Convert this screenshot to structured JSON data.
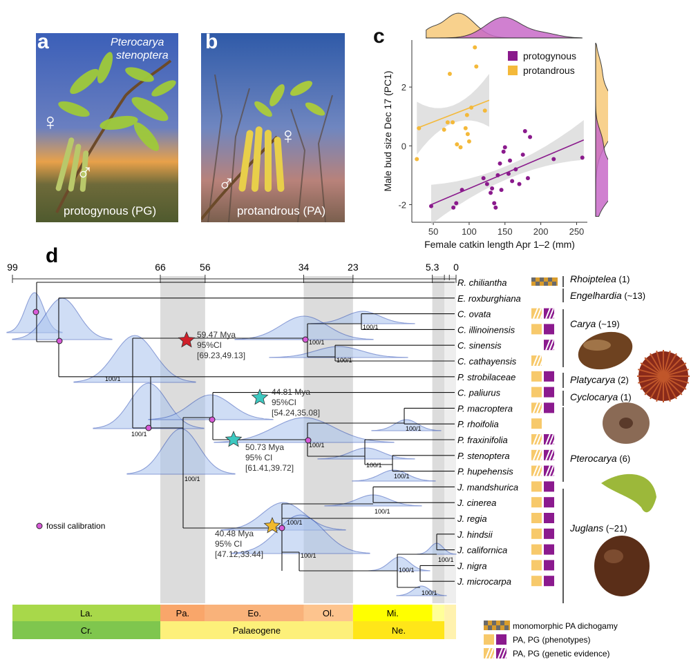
{
  "panel_a": {
    "letter": "a",
    "species_line1": "Pterocarya",
    "species_line2": "stenoptera",
    "female_symbol": "♀",
    "male_symbol": "♂",
    "caption": "protogynous (PG)"
  },
  "panel_b": {
    "letter": "b",
    "female_symbol": "♀",
    "male_symbol": "♂",
    "caption": "protandrous (PA)"
  },
  "panel_c": {
    "letter": "c",
    "legend": [
      "protogynous",
      "protandrous"
    ]
  },
  "chart_data": {
    "type": "scatter",
    "xlabel": "Female catkin length Apr 1–2 (mm)",
    "ylabel": "Male bud size Dec 17 (PC1)",
    "xlim": [
      20,
      265
    ],
    "ylim": [
      -2.6,
      3.6
    ],
    "xticks": [
      50,
      100,
      150,
      200,
      250
    ],
    "yticks": [
      -2,
      0,
      2
    ],
    "grid": false,
    "legend_position": "top-right",
    "colors": {
      "protogynous": "#8a1a8c",
      "protandrous": "#f4b93a"
    },
    "series": [
      {
        "name": "protogynous",
        "points": [
          [
            47,
            -2.05
          ],
          [
            78,
            -2.1
          ],
          [
            82,
            -1.95
          ],
          [
            90,
            -1.5
          ],
          [
            120,
            -1.1
          ],
          [
            125,
            -1.3
          ],
          [
            130,
            -1.6
          ],
          [
            132,
            -1.45
          ],
          [
            135,
            -1.95
          ],
          [
            137,
            -2.1
          ],
          [
            140,
            -1.0
          ],
          [
            143,
            -0.6
          ],
          [
            145,
            -1.5
          ],
          [
            148,
            -0.2
          ],
          [
            150,
            -0.05
          ],
          [
            155,
            -0.95
          ],
          [
            157,
            -0.5
          ],
          [
            160,
            -1.2
          ],
          [
            165,
            -0.8
          ],
          [
            170,
            -1.3
          ],
          [
            175,
            -0.3
          ],
          [
            178,
            0.5
          ],
          [
            182,
            -1.1
          ],
          [
            185,
            0.3
          ],
          [
            218,
            -0.45
          ],
          [
            258,
            -0.4
          ]
        ],
        "fit": [
          [
            47,
            -2.0
          ],
          [
            260,
            0.2
          ]
        ]
      },
      {
        "name": "protandrous",
        "points": [
          [
            27,
            -0.45
          ],
          [
            30,
            0.6
          ],
          [
            65,
            0.55
          ],
          [
            70,
            0.8
          ],
          [
            73,
            2.45
          ],
          [
            77,
            0.8
          ],
          [
            83,
            0.05
          ],
          [
            88,
            -0.05
          ],
          [
            95,
            0.6
          ],
          [
            97,
            1.05
          ],
          [
            98,
            0.4
          ],
          [
            100,
            0.15
          ],
          [
            103,
            1.3
          ],
          [
            108,
            3.35
          ],
          [
            110,
            2.7
          ],
          [
            122,
            1.2
          ]
        ],
        "fit": [
          [
            27,
            0.6
          ],
          [
            128,
            1.55
          ]
        ]
      }
    ],
    "marginal_x": {
      "protandrous_peak_x": 85,
      "protogynous_peak_x": 148
    },
    "marginal_y": {
      "protandrous_peak_y": 1.0,
      "protogynous_peak_y": -1.2
    }
  },
  "panel_d": {
    "letter": "d",
    "time_axis": [
      "99",
      "66",
      "56",
      "34",
      "23",
      "5.3",
      "0"
    ],
    "taxa": [
      "R. chiliantha",
      "E. roxburghiana",
      "C. ovata",
      "C. illinoinensis",
      "C. sinensis",
      "C. cathayensis",
      "P. strobilaceae",
      "C. paliurus",
      "P. macroptera",
      "P. rhoifolia",
      "P. fraxinifolia",
      "P. stenoptera",
      "P. hupehensis",
      "J. mandshurica",
      "J. cinerea",
      "J. regia",
      "J. hindsii",
      "J. californica",
      "J. nigra",
      "J. microcarpa"
    ],
    "support": "100/1",
    "annotations": [
      {
        "age": "59.47 Mya",
        "ci_label": "95%CI",
        "ci": "[69.23,49.13]",
        "star_color": "#d0202a"
      },
      {
        "age": "44.81 Mya",
        "ci_label": "95%CI",
        "ci": "[54.24,35.08]",
        "star_color": "#3cc8c0"
      },
      {
        "age": "50.73 Mya",
        "ci_label": "95% CI",
        "ci": "[61.41,39.72]",
        "star_color": "#3cc8c0"
      },
      {
        "age": "40.48 Mya",
        "ci_label": "95% CI",
        "ci": "[47.12,33.44]",
        "star_color": "#f0b92c"
      }
    ],
    "fossil_calibration": "fossil calibration",
    "genera": [
      {
        "name": "Rhoiptelea",
        "count": "(1)"
      },
      {
        "name": "Engelhardia",
        "count": "(~13)"
      },
      {
        "name": "Carya",
        "count": "(~19)"
      },
      {
        "name": "Platycarya",
        "count": "(2)"
      },
      {
        "name": "Cyclocarya",
        "count": "(1)"
      },
      {
        "name": "Pterocarya",
        "count": "(6)"
      },
      {
        "name": "Juglans",
        "count": "(~21)"
      }
    ],
    "periods_row1": [
      "La.",
      "Pa.",
      "Eo.",
      "Ol.",
      "Mi."
    ],
    "periods_row2": [
      "Cr.",
      "Palaeogene",
      "Ne."
    ],
    "legend": [
      "monomorphic PA dichogamy",
      "PA, PG (phenotypes)",
      "PA, PG (genetic evidence)"
    ]
  }
}
